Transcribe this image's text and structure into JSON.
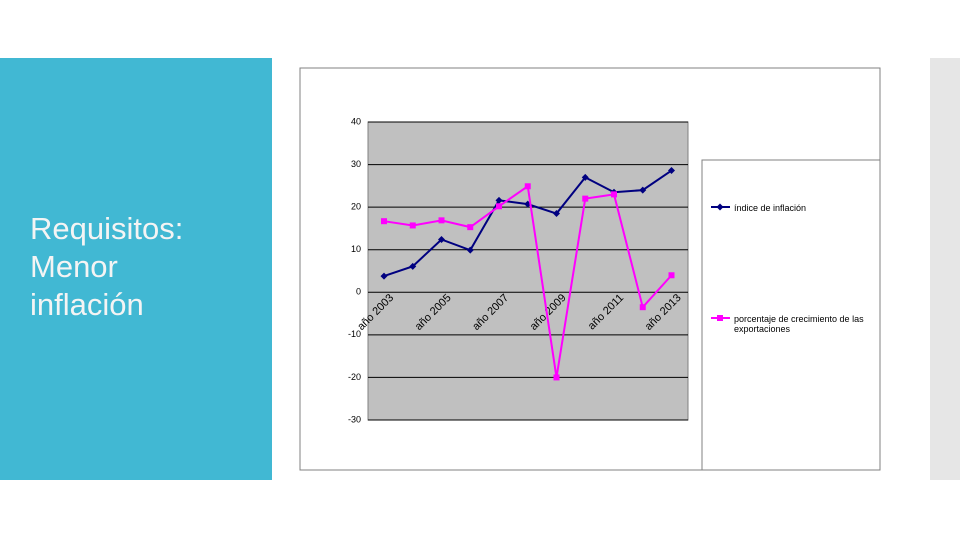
{
  "slide_title": "Requisitos: Menor inflación",
  "chart_data": {
    "type": "line",
    "categories": [
      "año 2003",
      null,
      "año 2005",
      null,
      "año 2007",
      null,
      "año 2009",
      null,
      "año 2011",
      null,
      "año 2013"
    ],
    "series": [
      {
        "name": "índice de inflación",
        "color": "#000080",
        "marker": "diamond",
        "values": [
          3.8,
          6.1,
          12.4,
          9.9,
          21.6,
          20.7,
          18.5,
          27,
          23.5,
          24,
          28.6
        ]
      },
      {
        "name": "porcentaje de crecimiento de las exportaciones",
        "color": "#ff00ff",
        "marker": "square",
        "values": [
          16.7,
          15.7,
          16.9,
          15.3,
          20.2,
          24.9,
          -20,
          22,
          23,
          -3.5,
          4
        ]
      }
    ],
    "ylim": [
      -30,
      40
    ],
    "yticks": [
      -30,
      -20,
      -10,
      0,
      10,
      20,
      30,
      40
    ],
    "grid": true
  }
}
